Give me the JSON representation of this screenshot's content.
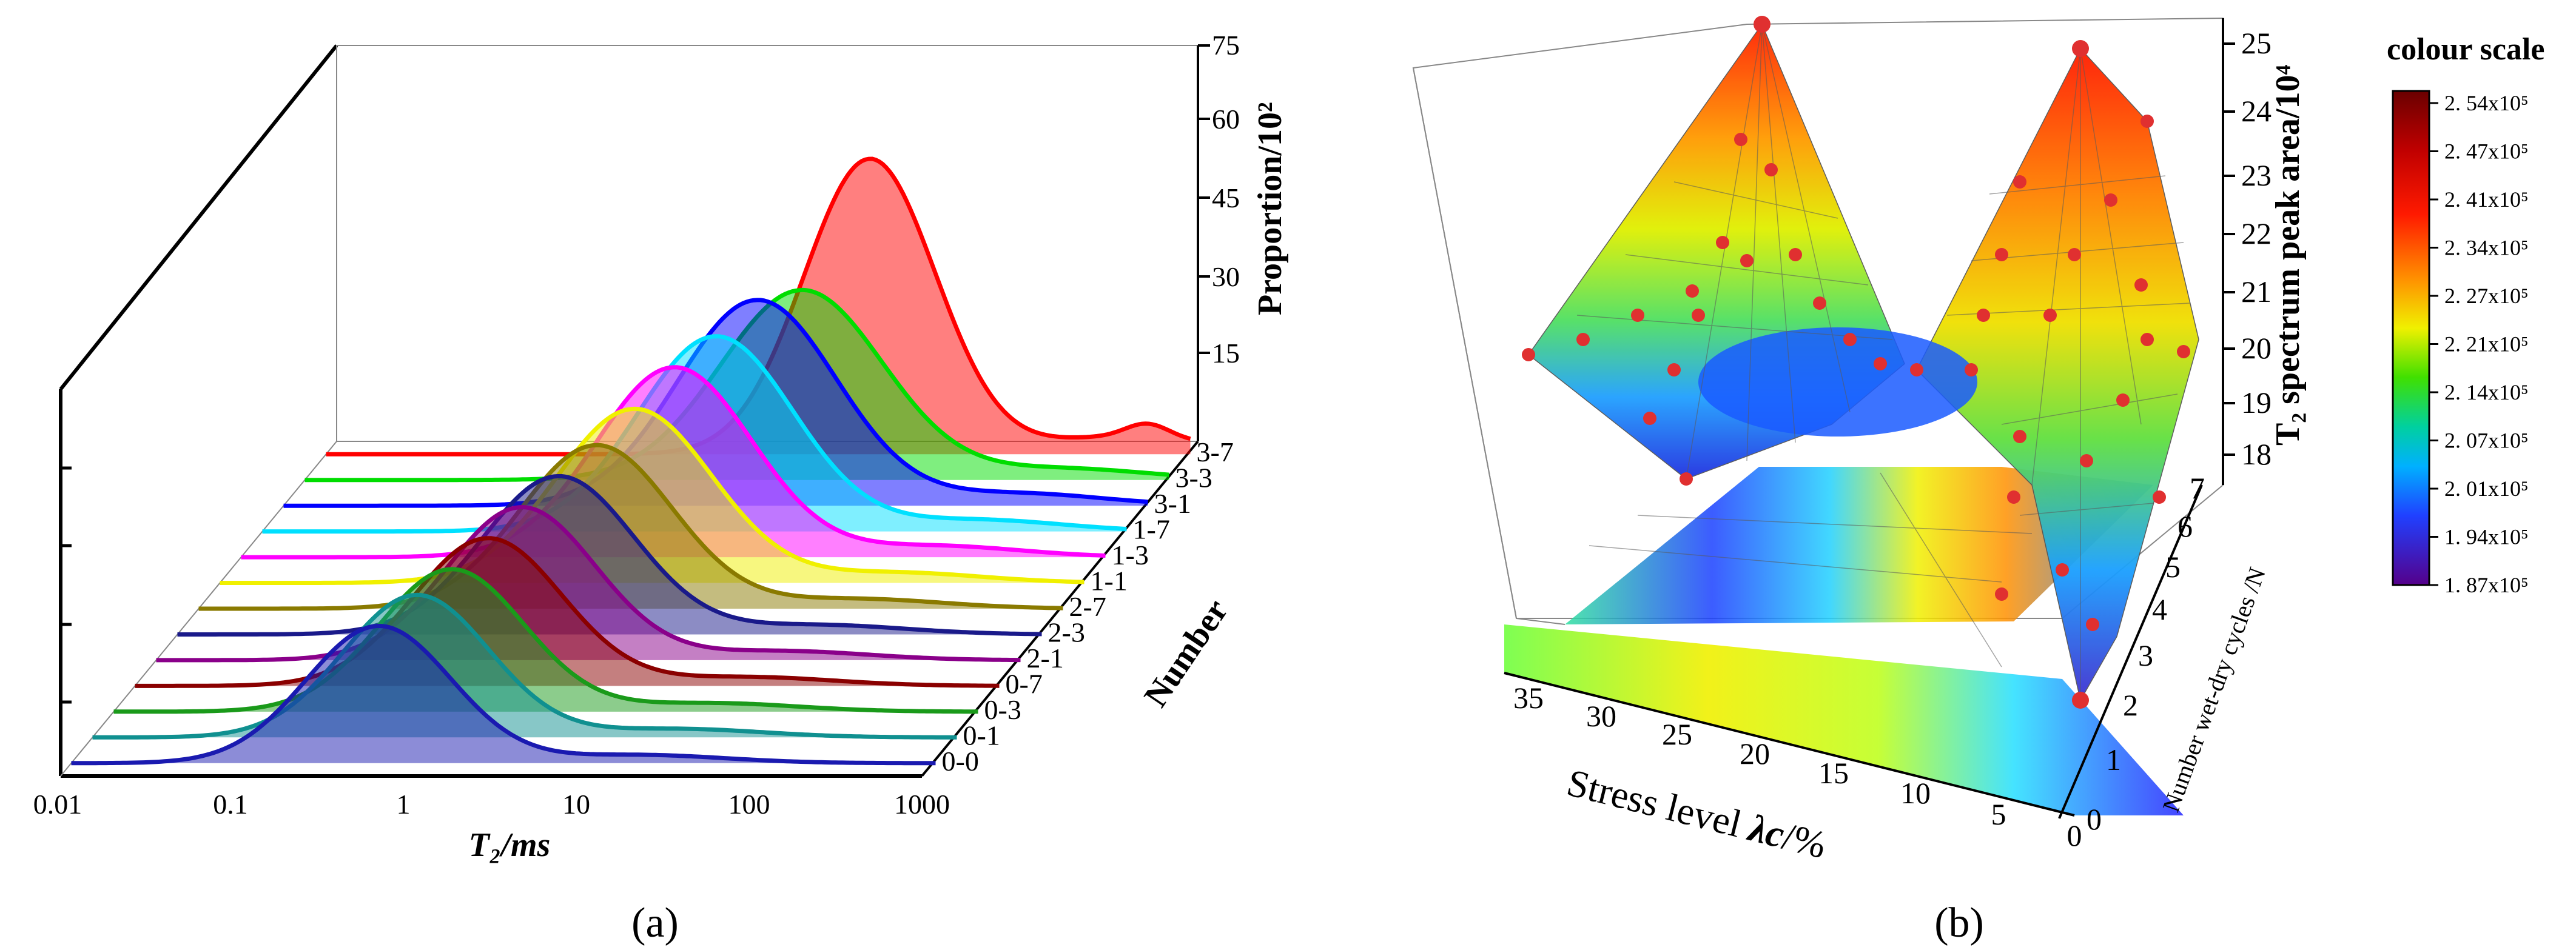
{
  "colors": {
    "series": [
      "#1a1ab0",
      "#109090",
      "#1a9a1a",
      "#8a0000",
      "#8a008a",
      "#1a1a8a",
      "#8a7a00",
      "#f0f000",
      "#ff00ff",
      "#00e0ff",
      "#0000ff",
      "#00dd00",
      "#ff0000"
    ],
    "scale_top": "#6a0000",
    "scale_bottom": "#55008a",
    "points": "#e03030"
  },
  "chart_data": [
    {
      "panel": "a",
      "type": "area",
      "caption": "(a)",
      "x_label": "T₂/ms",
      "x_scale": "log",
      "x_ticks": [
        "0.01",
        "0.1",
        "1",
        "10",
        "100",
        "1000"
      ],
      "y_label": "Proportion/10²",
      "y_ticks": [
        "15",
        "30",
        "45",
        "60",
        "75"
      ],
      "ylim": [
        0,
        75
      ],
      "depth_label": "Number",
      "series_labels": [
        "0-0",
        "0-1",
        "0-3",
        "0-7",
        "2-1",
        "2-3",
        "2-7",
        "1-1",
        "1-3",
        "1-7",
        "3-1",
        "3-3",
        "3-7"
      ],
      "series": [
        {
          "name": "0-0",
          "peak_t2": 0.6,
          "peak": 26,
          "width": 0.42
        },
        {
          "name": "0-1",
          "peak_t2": 0.75,
          "peak": 27,
          "width": 0.42
        },
        {
          "name": "0-3",
          "peak_t2": 0.9,
          "peak": 27,
          "width": 0.42
        },
        {
          "name": "0-7",
          "peak_t2": 1.1,
          "peak": 28,
          "width": 0.43
        },
        {
          "name": "2-1",
          "peak_t2": 1.3,
          "peak": 29,
          "width": 0.43
        },
        {
          "name": "2-3",
          "peak_t2": 1.6,
          "peak": 30,
          "width": 0.44
        },
        {
          "name": "2-7",
          "peak_t2": 2.0,
          "peak": 31,
          "width": 0.44
        },
        {
          "name": "1-1",
          "peak_t2": 2.5,
          "peak": 33,
          "width": 0.45
        },
        {
          "name": "1-3",
          "peak_t2": 3.2,
          "peak": 36,
          "width": 0.45
        },
        {
          "name": "1-7",
          "peak_t2": 4.2,
          "peak": 37,
          "width": 0.45
        },
        {
          "name": "3-1",
          "peak_t2": 5.5,
          "peak": 39,
          "width": 0.46
        },
        {
          "name": "3-3",
          "peak_t2": 7.5,
          "peak": 36,
          "width": 0.47
        },
        {
          "name": "3-7",
          "peak_t2": 14,
          "peak": 56,
          "width": 0.38
        }
      ]
    },
    {
      "panel": "b",
      "type": "surface",
      "caption": "(b)",
      "x_label_main": "Stress level ",
      "x_label_var": "λc",
      "x_label_unit": "/%",
      "x_ticks": [
        "35",
        "30",
        "25",
        "20",
        "15",
        "10",
        "5",
        "0"
      ],
      "y_label": "Number wet-dry cycles /N",
      "y_ticks": [
        "0",
        "1",
        "2",
        "3",
        "4",
        "5",
        "6",
        "7"
      ],
      "z_label": "T₂ spectrum peak area/10⁴",
      "z_ticks": [
        "18",
        "19",
        "20",
        "21",
        "22",
        "23",
        "24",
        "25"
      ],
      "zlim": [
        18,
        25
      ],
      "colour_scale": {
        "title": "colour scale",
        "levels": [
          "2. 54x10⁵",
          "2. 47x10⁵",
          "2. 41x10⁵",
          "2. 34x10⁵",
          "2. 27x10⁵",
          "2. 21x10⁵",
          "2. 14x10⁵",
          "2. 07x10⁵",
          "2. 01x10⁵",
          "1. 94x10⁵",
          "1. 87x10⁵"
        ]
      }
    }
  ]
}
